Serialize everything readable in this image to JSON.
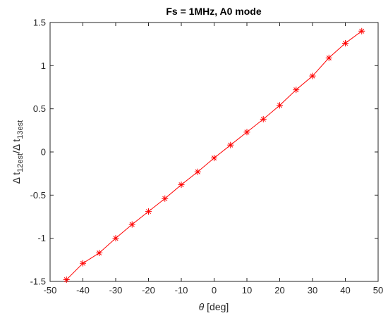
{
  "chart_data": {
    "type": "line",
    "title": "Fs = 1MHz, A0 mode",
    "xlabel": "θ [deg]",
    "xlabel_symbol": "θ",
    "xlabel_unit": "[deg]",
    "ylabel": "Δ t12est/Δ t13est",
    "ylabel_parts": {
      "num_symbol": "Δ t",
      "num_sub": "12est",
      "sep": "/",
      "den_symbol": "Δ t",
      "den_sub": "13est"
    },
    "xlim": [
      -50,
      50
    ],
    "ylim": [
      -1.5,
      1.5
    ],
    "xticks": [
      -50,
      -40,
      -30,
      -20,
      -10,
      0,
      10,
      20,
      30,
      40,
      50
    ],
    "xtick_labels": [
      "-50",
      "-40",
      "-30",
      "-20",
      "-10",
      "0",
      "10",
      "20",
      "30",
      "40",
      "50"
    ],
    "yticks": [
      -1.5,
      -1,
      -0.5,
      0,
      0.5,
      1,
      1.5
    ],
    "ytick_labels": [
      "-1.5",
      "-1",
      "-0.5",
      "0",
      "0.5",
      "1",
      "1.5"
    ],
    "grid": false,
    "series": [
      {
        "color": "#ff0000",
        "marker": "asterisk",
        "x": [
          -45,
          -40,
          -35,
          -30,
          -25,
          -20,
          -15,
          -10,
          -5,
          0,
          5,
          10,
          15,
          20,
          25,
          30,
          35,
          40,
          45
        ],
        "y": [
          -1.48,
          -1.29,
          -1.17,
          -1.0,
          -0.84,
          -0.69,
          -0.54,
          -0.38,
          -0.23,
          -0.07,
          0.08,
          0.23,
          0.38,
          0.54,
          0.72,
          0.88,
          1.09,
          1.26,
          1.4
        ]
      }
    ]
  }
}
